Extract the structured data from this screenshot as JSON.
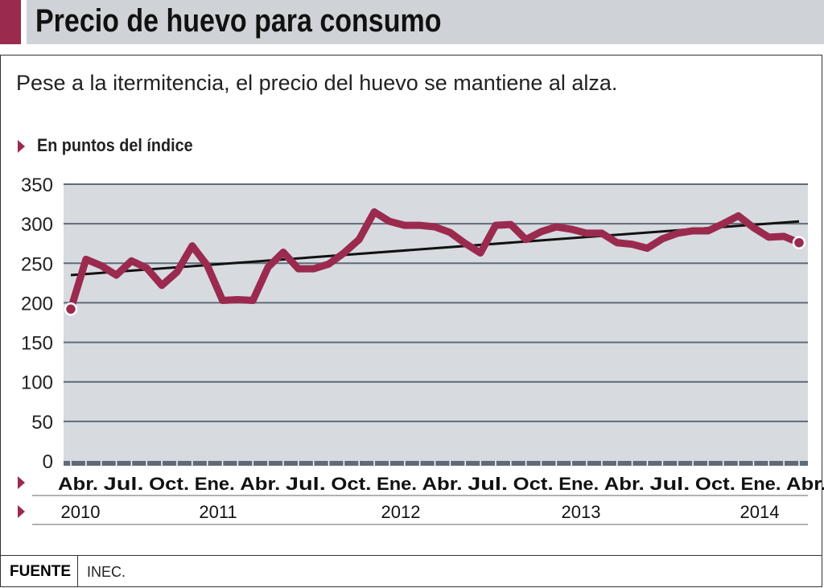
{
  "title": "Precio de huevo para consumo",
  "subtitle": "Pese a la itermitencia, el precio del huevo se mantiene al alza.",
  "source_label": "FUENTE",
  "source": "INEC.",
  "colors": {
    "line": "#9b2a4f",
    "plot_bg": "#d7dbe0",
    "trend": "#111111"
  },
  "chart_data": {
    "type": "line",
    "ylabel": "En puntos del índice",
    "ylim": [
      0,
      350
    ],
    "yticks": [
      "0",
      "50",
      "100",
      "150",
      "200",
      "250",
      "300",
      "350"
    ],
    "grid": true,
    "month_labels": [
      "Abr.",
      "Jul.",
      "Oct.",
      "Ene.",
      "Abr.",
      "Jul.",
      "Oct.",
      "Ene.",
      "Abr.",
      "Jul.",
      "Oct.",
      "Ene.",
      "Abr.",
      "Jul.",
      "Oct.",
      "Ene.",
      "Abr."
    ],
    "year_labels": [
      "2010",
      "2011",
      "2012",
      "2013",
      "2014"
    ],
    "x_range": [
      "2010-04",
      "2014-04"
    ],
    "values": [
      192,
      255,
      247,
      235,
      253,
      244,
      222,
      239,
      272,
      247,
      203,
      204,
      203,
      245,
      264,
      243,
      243,
      249,
      263,
      280,
      315,
      303,
      298,
      298,
      296,
      289,
      275,
      263,
      298,
      299,
      280,
      290,
      296,
      293,
      288,
      288,
      276,
      274,
      269,
      281,
      288,
      291,
      291,
      300,
      310,
      295,
      283,
      284,
      276
    ],
    "trend": {
      "start": 235,
      "end": 303
    }
  }
}
